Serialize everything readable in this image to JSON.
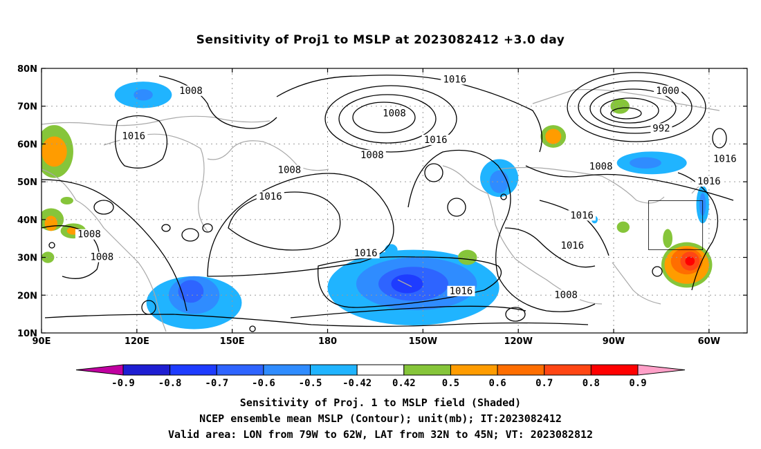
{
  "title": "Sensitivity of Proj1 to MSLP at 2023082412 +3.0 day",
  "map": {
    "lon_range": [
      90,
      312
    ],
    "lat_range": [
      10,
      80
    ],
    "grid": "dotted",
    "lon_ticks": [
      {
        "lon": 90,
        "label": "90E"
      },
      {
        "lon": 120,
        "label": "120E"
      },
      {
        "lon": 150,
        "label": "150E"
      },
      {
        "lon": 180,
        "label": "180"
      },
      {
        "lon": 210,
        "label": "150W"
      },
      {
        "lon": 240,
        "label": "120W"
      },
      {
        "lon": 270,
        "label": "90W"
      },
      {
        "lon": 300,
        "label": "60W"
      }
    ],
    "lat_ticks": [
      {
        "lat": 10,
        "label": "10N"
      },
      {
        "lat": 20,
        "label": "20N"
      },
      {
        "lat": 30,
        "label": "30N"
      },
      {
        "lat": 40,
        "label": "40N"
      },
      {
        "lat": 50,
        "label": "50N"
      },
      {
        "lat": 60,
        "label": "60N"
      },
      {
        "lat": 70,
        "label": "70N"
      },
      {
        "lat": 80,
        "label": "80N"
      }
    ],
    "valid_area": {
      "lon_min": 281,
      "lon_max": 298,
      "lat_min": 32,
      "lat_max": 45
    },
    "contour_labels": [
      {
        "text": "1008",
        "lon": 137,
        "lat": 74
      },
      {
        "text": "1016",
        "lon": 119,
        "lat": 62
      },
      {
        "text": "1016",
        "lon": 220,
        "lat": 77
      },
      {
        "text": "1008",
        "lon": 201,
        "lat": 68
      },
      {
        "text": "1000",
        "lon": 287,
        "lat": 74
      },
      {
        "text": "992",
        "lon": 285,
        "lat": 64
      },
      {
        "text": "1008",
        "lon": 194,
        "lat": 57
      },
      {
        "text": "1016",
        "lon": 214,
        "lat": 61
      },
      {
        "text": "1008",
        "lon": 168,
        "lat": 53
      },
      {
        "text": "1016",
        "lon": 162,
        "lat": 46
      },
      {
        "text": "1008",
        "lon": 266,
        "lat": 54
      },
      {
        "text": "1016",
        "lon": 305,
        "lat": 56
      },
      {
        "text": "1016",
        "lon": 300,
        "lat": 50
      },
      {
        "text": "1016",
        "lon": 260,
        "lat": 41
      },
      {
        "text": "1008",
        "lon": 105,
        "lat": 36
      },
      {
        "text": "1008",
        "lon": 109,
        "lat": 30
      },
      {
        "text": "1016",
        "lon": 192,
        "lat": 31
      },
      {
        "text": "1016",
        "lon": 257,
        "lat": 33
      },
      {
        "text": "1016",
        "lon": 222,
        "lat": 21
      },
      {
        "text": "1008",
        "lon": 255,
        "lat": 20
      }
    ],
    "sensitivity_blobs": [
      {
        "lon": 138,
        "lat": 18,
        "rx": 15,
        "ry": 7,
        "level": -0.5
      },
      {
        "lon": 138,
        "lat": 20,
        "rx": 8,
        "ry": 5,
        "level": -0.6
      },
      {
        "lon": 137,
        "lat": 21,
        "rx": 4,
        "ry": 3,
        "level": -0.7
      },
      {
        "lon": 207,
        "lat": 22,
        "rx": 27,
        "ry": 10,
        "level": -0.5
      },
      {
        "lon": 208,
        "lat": 23,
        "rx": 19,
        "ry": 7,
        "level": -0.6
      },
      {
        "lon": 207,
        "lat": 23,
        "rx": 11,
        "ry": 4.5,
        "level": -0.7
      },
      {
        "lon": 205,
        "lat": 23,
        "rx": 5,
        "ry": 2.5,
        "level": -0.8
      },
      {
        "lon": 224,
        "lat": 30,
        "rx": 3,
        "ry": 2,
        "level": 0.5
      },
      {
        "lon": 200,
        "lat": 32,
        "rx": 2,
        "ry": 1.5,
        "level": -0.5
      },
      {
        "lon": 122,
        "lat": 73,
        "rx": 9,
        "ry": 3.5,
        "level": -0.5
      },
      {
        "lon": 122,
        "lat": 73,
        "rx": 3,
        "ry": 1.5,
        "level": -0.6
      },
      {
        "lon": 234,
        "lat": 51,
        "rx": 6,
        "ry": 5,
        "level": -0.5
      },
      {
        "lon": 234,
        "lat": 50,
        "rx": 3,
        "ry": 3,
        "level": -0.6
      },
      {
        "lon": 282,
        "lat": 55,
        "rx": 11,
        "ry": 3,
        "level": -0.5
      },
      {
        "lon": 280,
        "lat": 55,
        "rx": 5,
        "ry": 1.5,
        "level": -0.6
      },
      {
        "lon": 298,
        "lat": 44,
        "rx": 2,
        "ry": 5,
        "level": -0.5
      },
      {
        "lon": 298,
        "lat": 44,
        "rx": 1,
        "ry": 3,
        "level": -0.6
      },
      {
        "lon": 251,
        "lat": 62,
        "rx": 4,
        "ry": 3,
        "level": 0.5
      },
      {
        "lon": 251,
        "lat": 62,
        "rx": 2.5,
        "ry": 2,
        "level": 0.6
      },
      {
        "lon": 272,
        "lat": 70,
        "rx": 3,
        "ry": 2,
        "level": 0.5
      },
      {
        "lon": 94,
        "lat": 58,
        "rx": 6,
        "ry": 7,
        "level": 0.5
      },
      {
        "lon": 94,
        "lat": 58,
        "rx": 4,
        "ry": 4,
        "level": 0.6
      },
      {
        "lon": 93,
        "lat": 40,
        "rx": 4,
        "ry": 3,
        "level": 0.5
      },
      {
        "lon": 93,
        "lat": 39,
        "rx": 2,
        "ry": 2,
        "level": 0.6
      },
      {
        "lon": 92,
        "lat": 30,
        "rx": 2,
        "ry": 1.5,
        "level": 0.5
      },
      {
        "lon": 100,
        "lat": 37,
        "rx": 4,
        "ry": 2,
        "level": 0.5
      },
      {
        "lon": 100,
        "lat": 37,
        "rx": 2,
        "ry": 1,
        "level": 0.6
      },
      {
        "lon": 98,
        "lat": 45,
        "rx": 2,
        "ry": 1,
        "level": 0.5
      },
      {
        "lon": 293,
        "lat": 28,
        "rx": 8,
        "ry": 6,
        "level": 0.5
      },
      {
        "lon": 293,
        "lat": 28,
        "rx": 7,
        "ry": 5,
        "level": 0.6
      },
      {
        "lon": 293,
        "lat": 29,
        "rx": 5,
        "ry": 3.5,
        "level": 0.7
      },
      {
        "lon": 294,
        "lat": 29,
        "rx": 3,
        "ry": 2.5,
        "level": 0.8
      },
      {
        "lon": 294,
        "lat": 29,
        "rx": 1.5,
        "ry": 1.2,
        "level": 0.9
      },
      {
        "lon": 287,
        "lat": 35,
        "rx": 1.5,
        "ry": 2.5,
        "level": 0.5
      },
      {
        "lon": 273,
        "lat": 38,
        "rx": 2,
        "ry": 1.5,
        "level": 0.5
      },
      {
        "lon": 264,
        "lat": 40,
        "rx": 1,
        "ry": 1,
        "level": -0.5
      }
    ]
  },
  "colorbar": {
    "labels": [
      "-0.9",
      "-0.8",
      "-0.7",
      "-0.6",
      "-0.5",
      "-0.42",
      "0.42",
      "0.5",
      "0.6",
      "0.7",
      "0.8",
      "0.9"
    ],
    "colors": [
      "#c000a0",
      "#1e1ed2",
      "#1e3cff",
      "#2e64ff",
      "#2f8cff",
      "#20b4ff",
      "#ffffff",
      "#86c53a",
      "#ff9c00",
      "#ff6e00",
      "#ff4614",
      "#ff0000",
      "#ffa0c8"
    ]
  },
  "captions": [
    "Sensitivity of Proj. 1 to MSLP field (Shaded)",
    "NCEP ensemble mean MSLP (Contour); unit(mb); IT:2023082412",
    "Valid area: LON from 79W to 62W, LAT from 32N to 45N; VT: 2023082812"
  ]
}
